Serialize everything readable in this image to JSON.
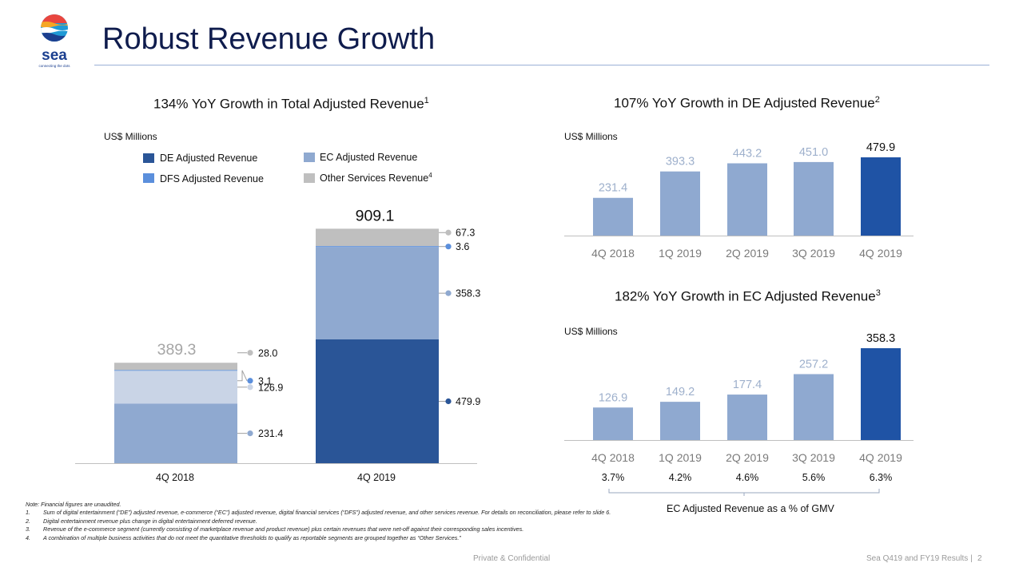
{
  "brand": {
    "name": "sea",
    "tagline": "connecting the dots"
  },
  "title": "Robust Revenue Growth",
  "colors": {
    "de_dark": "#2a5597",
    "ec_light": "#8fa9d0",
    "dfs": "#5b8fdc",
    "other": "#bfbfbf",
    "de_bar": "#1f53a5",
    "title_rule": "#9bb0d6"
  },
  "chart_data": [
    {
      "type": "bar",
      "stacked": true,
      "title": "134% YoY Growth in Total Adjusted Revenue",
      "title_footnote": "1",
      "unit": "US$ Millions",
      "categories": [
        "4Q 2018",
        "4Q 2019"
      ],
      "totals": [
        "389.3",
        "909.1"
      ],
      "series": [
        {
          "name": "DE Adjusted Revenue",
          "values": [
            231.4,
            479.9
          ],
          "labels": [
            "231.4",
            "479.9"
          ]
        },
        {
          "name": "EC Adjusted Revenue",
          "values": [
            126.9,
            358.3
          ],
          "labels": [
            "126.9",
            "358.3"
          ]
        },
        {
          "name": "DFS Adjusted Revenue",
          "values": [
            3.1,
            3.6
          ],
          "labels": [
            "3.1",
            "3.6"
          ]
        },
        {
          "name": "Other Services Revenue",
          "footnote": "4",
          "values": [
            28.0,
            67.3
          ],
          "labels": [
            "28.0",
            "67.3"
          ]
        }
      ],
      "legend": {
        "placement": "top",
        "order": [
          "DE Adjusted Revenue",
          "EC Adjusted Revenue",
          "DFS Adjusted Revenue",
          "Other Services Revenue"
        ]
      }
    },
    {
      "type": "bar",
      "title": "107% YoY Growth in DE Adjusted Revenue",
      "title_footnote": "2",
      "unit": "US$ Millions",
      "categories": [
        "4Q 2018",
        "1Q 2019",
        "2Q 2019",
        "3Q 2019",
        "4Q 2019"
      ],
      "values": [
        231.4,
        393.3,
        443.2,
        451.0,
        479.9
      ],
      "labels": [
        "231.4",
        "393.3",
        "443.2",
        "451.0",
        "479.9"
      ],
      "highlight_last": true
    },
    {
      "type": "bar",
      "title": "182% YoY Growth in EC Adjusted Revenue",
      "title_footnote": "3",
      "unit": "US$ Millions",
      "categories": [
        "4Q 2018",
        "1Q 2019",
        "2Q 2019",
        "3Q 2019",
        "4Q 2019"
      ],
      "values": [
        126.9,
        149.2,
        177.4,
        257.2,
        358.3
      ],
      "labels": [
        "126.9",
        "149.2",
        "177.4",
        "257.2",
        "358.3"
      ],
      "highlight_last": true,
      "gmv_pct": [
        "3.7%",
        "4.2%",
        "4.6%",
        "5.6%",
        "6.3%"
      ],
      "gmv_caption": "EC Adjusted Revenue as a % of GMV"
    }
  ],
  "notes": {
    "intro": "Note: Financial figures are unaudited.",
    "items": [
      {
        "num": "1.",
        "text": "Sum of digital entertainment (“DE”) adjusted revenue, e-commerce (“EC”) adjusted revenue, digital financial services (“DFS”) adjusted revenue, and other services revenue. For details on reconciliation, please refer to slide 6."
      },
      {
        "num": "2.",
        "text": "Digital entertainment revenue plus change in digital entertainment deferred revenue."
      },
      {
        "num": "3.",
        "text": "Revenue of the e-commerce segment (currently consisting of marketplace revenue and product revenue) plus certain revenues that were net-off against their corresponding sales incentives."
      },
      {
        "num": "4.",
        "text": "A combination of multiple business activities that do not meet the quantitative thresholds to qualify as reportable segments are grouped together as “Other Services.”"
      }
    ]
  },
  "footer": {
    "center": "Private & Confidential",
    "right": "Sea Q419 and FY19 Results |",
    "page": "2"
  }
}
